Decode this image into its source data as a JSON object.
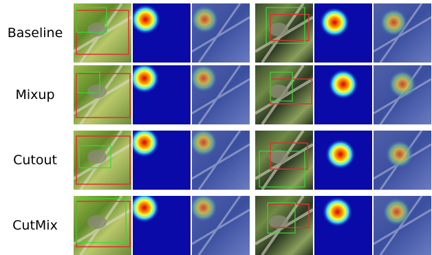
{
  "rows": [
    {
      "label": "Baseline",
      "hotA": [
        0.22,
        0.27
      ],
      "hotB": [
        0.35,
        0.32
      ]
    },
    {
      "label": "Mixup",
      "hotA": [
        0.2,
        0.22
      ],
      "hotB": [
        0.5,
        0.32
      ]
    },
    {
      "label": "Cutout",
      "hotA": [
        0.2,
        0.2
      ],
      "hotB": [
        0.45,
        0.4
      ]
    },
    {
      "label": "CutMix",
      "hotA": [
        0.2,
        0.2
      ],
      "hotB": [
        0.4,
        0.27
      ]
    }
  ],
  "colors": {
    "gt_box": "#e03030",
    "pred_box": "#33dd33",
    "heat_background": "#0a0aa8"
  }
}
